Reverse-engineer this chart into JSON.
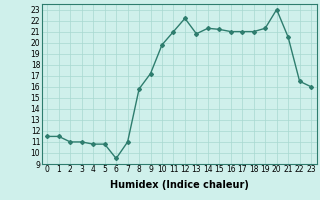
{
  "x": [
    0,
    1,
    2,
    3,
    4,
    5,
    6,
    7,
    8,
    9,
    10,
    11,
    12,
    13,
    14,
    15,
    16,
    17,
    18,
    19,
    20,
    21,
    22,
    23
  ],
  "y": [
    11.5,
    11.5,
    11.0,
    11.0,
    10.8,
    10.8,
    9.5,
    11.0,
    15.8,
    17.2,
    19.8,
    21.0,
    22.2,
    20.8,
    21.3,
    21.2,
    21.0,
    21.0,
    21.0,
    21.3,
    23.0,
    20.5,
    16.5,
    16.0
  ],
  "xlim": [
    -0.5,
    23.5
  ],
  "ylim": [
    9,
    23.5
  ],
  "yticks": [
    9,
    10,
    11,
    12,
    13,
    14,
    15,
    16,
    17,
    18,
    19,
    20,
    21,
    22,
    23
  ],
  "xticks": [
    0,
    1,
    2,
    3,
    4,
    5,
    6,
    7,
    8,
    9,
    10,
    11,
    12,
    13,
    14,
    15,
    16,
    17,
    18,
    19,
    20,
    21,
    22,
    23
  ],
  "xlabel": "Humidex (Indice chaleur)",
  "line_color": "#2e7d6e",
  "marker": "D",
  "marker_size": 2.0,
  "bg_color": "#cff0eb",
  "grid_color": "#a8d8d0",
  "tick_label_fontsize": 5.5,
  "xlabel_fontsize": 7.0,
  "line_width": 1.0
}
